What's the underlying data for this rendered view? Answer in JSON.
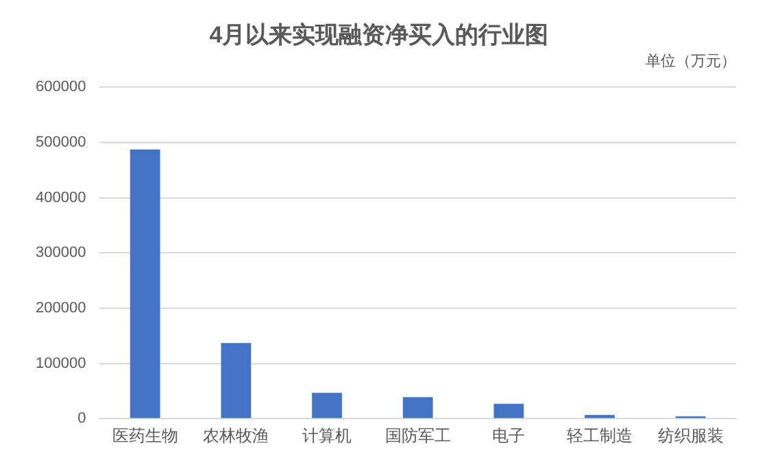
{
  "chart_data": {
    "type": "bar",
    "title": "4月以来实现融资净买入的行业图",
    "subtitle": "单位（万元）",
    "categories": [
      "医药生物",
      "农林牧渔",
      "计算机",
      "国防军工",
      "电子",
      "轻工制造",
      "纺织服装"
    ],
    "values": [
      487000,
      137000,
      46700,
      38900,
      26800,
      6900,
      4300
    ],
    "color": "#4472c4",
    "ylim": [
      0,
      600000
    ],
    "yticks": [
      0,
      100000,
      200000,
      300000,
      400000,
      500000,
      600000
    ],
    "grid": "y"
  }
}
